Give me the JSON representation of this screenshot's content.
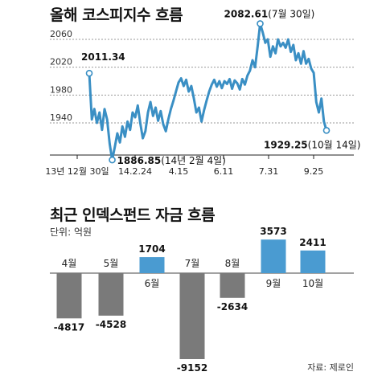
{
  "titles": {
    "kospi": "올해 코스피지수 흐름",
    "fund": "최근 인덱스펀드 자금 흐름",
    "unit": "단위: 억원",
    "source": "자료: 제로인"
  },
  "colors": {
    "line": "#3a8fc4",
    "bar_positive": "#4a9bd1",
    "bar_negative": "#7a7a7a"
  },
  "chart_data": [
    {
      "type": "line",
      "title": "올해 코스피지수 흐름",
      "x_start": "13년 12월 30일",
      "x_end": "10월 14일",
      "x_ticks": [
        "13년 12월 30일",
        "14.2.24",
        "4.15",
        "6.11",
        "7.31",
        "9.25"
      ],
      "y_ticks": [
        2060,
        2020,
        1980,
        1940
      ],
      "ylim": [
        1880,
        2090
      ],
      "grid": true,
      "series": [
        {
          "values": [
            2011.34,
            1945,
            1960,
            1940,
            1955,
            1930,
            1960,
            1945,
            1910,
            1886.85,
            1905,
            1925,
            1912,
            1935,
            1920,
            1942,
            1930,
            1955,
            1948,
            1965,
            1940,
            1918,
            1928,
            1955,
            1970,
            1950,
            1962,
            1943,
            1957,
            1938,
            1928,
            1945,
            1960,
            1972,
            1985,
            1998,
            2004,
            1993,
            2002,
            1985,
            1993,
            1975,
            1955,
            1962,
            1942,
            1958,
            1972,
            1985,
            1995,
            2002,
            1992,
            2000,
            1990,
            2000,
            1996,
            2003,
            1989,
            2001,
            1997,
            1988,
            2003,
            1995,
            2008,
            2015,
            2030,
            2020,
            2050,
            2082.61,
            2070,
            2055,
            2060,
            2035,
            2050,
            2040,
            2060,
            2050,
            2055,
            2048,
            2060,
            2042,
            2052,
            2030,
            2040,
            2025,
            2043,
            2025,
            2032,
            2018,
            2012,
            1970,
            1955,
            1975,
            1942,
            1929.25
          ]
        }
      ],
      "annotations": [
        {
          "value": "2011.34",
          "label": "2011.34"
        },
        {
          "value": "1886.85",
          "label": "1886.85",
          "date": "(14년 2월 4일)"
        },
        {
          "value": "2082.61",
          "label": "2082.61",
          "date": "(7월 30일)"
        },
        {
          "value": "1929.25",
          "label": "1929.25",
          "date": "(10월 14일)"
        }
      ]
    },
    {
      "type": "bar",
      "title": "최근 인덱스펀드 자금 흐름",
      "unit": "단위: 억원",
      "categories": [
        "4월",
        "5월",
        "6월",
        "7월",
        "8월",
        "9월",
        "10월"
      ],
      "values": [
        -4817,
        -4528,
        1704,
        -9152,
        -2634,
        3573,
        2411
      ],
      "ylim": [
        -9152,
        3573
      ]
    }
  ]
}
